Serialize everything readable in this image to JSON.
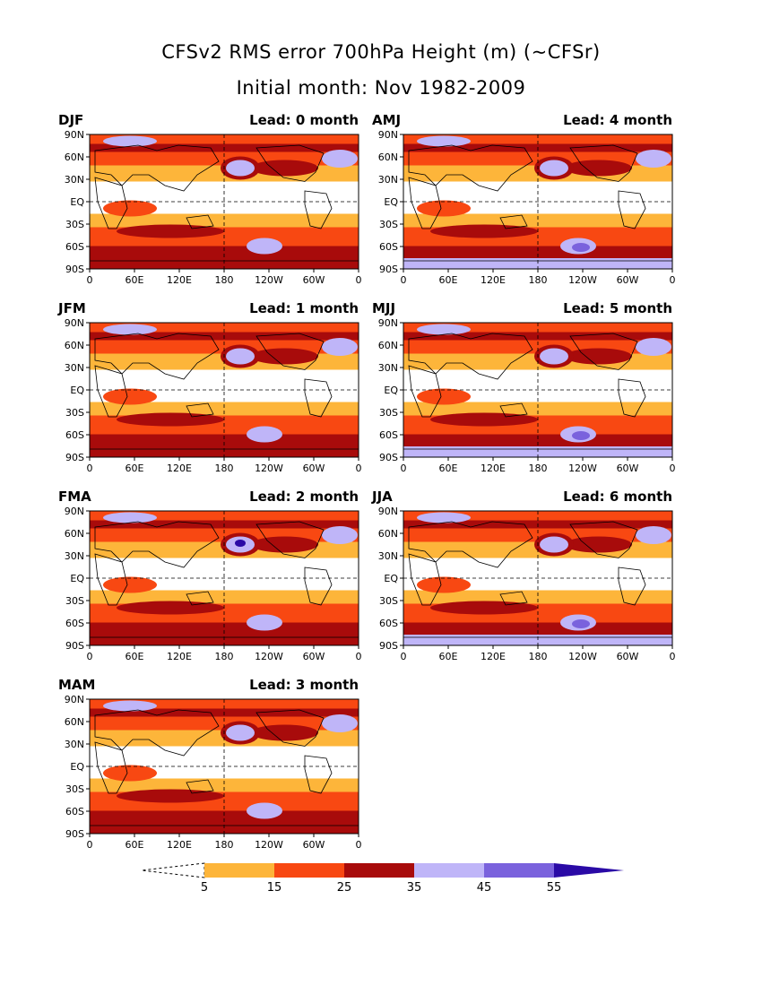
{
  "title": {
    "line1": "CFSv2 RMS error 700hPa Height (m) (~CFSr)",
    "line2": "Initial month: Nov 1982-2009"
  },
  "lat_ticks": [
    "90N",
    "60N",
    "30N",
    "EQ",
    "30S",
    "60S",
    "90S"
  ],
  "lon_ticks": [
    "0",
    "60E",
    "120E",
    "180",
    "120W",
    "60W",
    "0"
  ],
  "colors": {
    "5-15": "#fdb53a",
    "15-25": "#f84812",
    "25-35": "#a80b0b",
    "35-45": "#bfb5f8",
    "45-55": "#7a62dd",
    ">55": "#2a0aa6",
    "below5": "#ffffff"
  },
  "colorbar": {
    "labels": [
      "5",
      "15",
      "25",
      "35",
      "45",
      "55"
    ]
  },
  "panels": [
    {
      "season": "DJF",
      "lead": "Lead: 0 month"
    },
    {
      "season": "AMJ",
      "lead": "Lead: 4 month"
    },
    {
      "season": "JFM",
      "lead": "Lead: 1 month"
    },
    {
      "season": "MJJ",
      "lead": "Lead: 5 month"
    },
    {
      "season": "FMA",
      "lead": "Lead: 2 month"
    },
    {
      "season": "JJA",
      "lead": "Lead: 6 month"
    },
    {
      "season": "MAM",
      "lead": "Lead: 3 month"
    }
  ]
}
